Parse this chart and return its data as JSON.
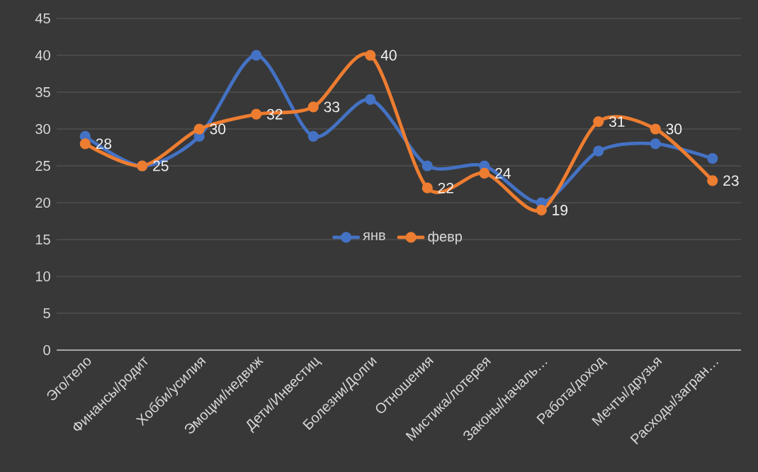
{
  "chart_data": {
    "type": "line",
    "categories": [
      "Эго/тело",
      "Финансы/родит",
      "Хобби/усилия",
      "Эмоции/недвиж",
      "Дети/Инвестиц",
      "Болезни/Долги",
      "Отношения",
      "Мистика/лотерея",
      "Законы/началь…",
      "Работа/доход",
      "Мечты/друзья",
      "Расходы/загран…"
    ],
    "series": [
      {
        "name": "янв",
        "color": "#4472c4",
        "values": [
          29,
          25,
          29,
          40,
          29,
          34,
          25,
          25,
          20,
          27,
          28,
          26
        ]
      },
      {
        "name": "февр",
        "color": "#ed7d31",
        "values": [
          28,
          25,
          30,
          32,
          33,
          40,
          22,
          24,
          19,
          31,
          30,
          23
        ],
        "value_labels": [
          "28",
          "25",
          "30",
          "32",
          "33",
          "40",
          "22",
          "24",
          "19",
          "31",
          "30",
          "23"
        ]
      }
    ],
    "ylim": [
      0,
      45
    ],
    "yticks": [
      0,
      5,
      10,
      15,
      20,
      25,
      30,
      35,
      40,
      45
    ],
    "grid": "y",
    "legend": "center",
    "marker": "circle",
    "line_style": "solid"
  }
}
